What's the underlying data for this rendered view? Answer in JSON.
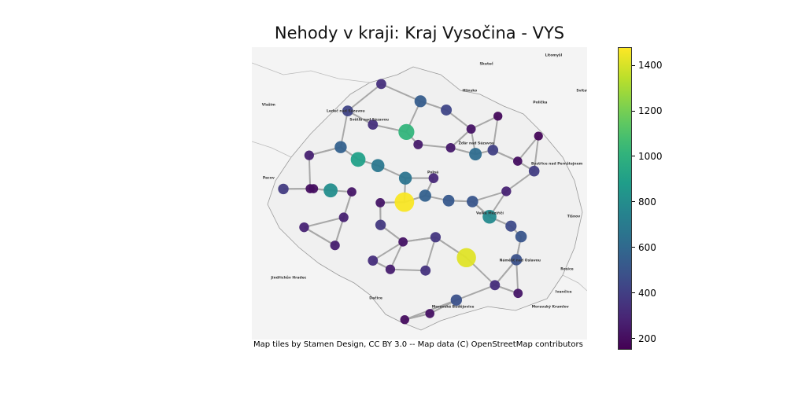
{
  "title": "Nehody v kraji: Kraj Vysočina - VYS",
  "attribution": "Map tiles by Stamen Design, CC BY 3.0 -- Map data (C) OpenStreetMap contributors",
  "colormap": "viridis",
  "colorbar": {
    "min": 150,
    "max": 1480,
    "ticks": [
      200,
      400,
      600,
      800,
      1000,
      1200,
      1400
    ]
  },
  "map_labels": [
    {
      "name": "Skuteč",
      "u": 0.7,
      "v": 0.06
    },
    {
      "name": "Litomyšl",
      "u": 0.9,
      "v": 0.03
    },
    {
      "name": "Hlinsko",
      "u": 0.65,
      "v": 0.15
    },
    {
      "name": "Polička",
      "u": 0.86,
      "v": 0.19
    },
    {
      "name": "Svitavy",
      "u": 0.99,
      "v": 0.15
    },
    {
      "name": "Vlašim",
      "u": 0.05,
      "v": 0.2
    },
    {
      "name": "Ledeč nad Sázavou",
      "u": 0.28,
      "v": 0.22
    },
    {
      "name": "Světlá nad Sázavou",
      "u": 0.35,
      "v": 0.25
    },
    {
      "name": "Žďár nad Sázavou",
      "u": 0.67,
      "v": 0.33
    },
    {
      "name": "Bystřice nad Pernštejnem",
      "u": 0.91,
      "v": 0.4
    },
    {
      "name": "Pacov",
      "u": 0.05,
      "v": 0.45
    },
    {
      "name": "Polná",
      "u": 0.54,
      "v": 0.43
    },
    {
      "name": "Velké Meziříčí",
      "u": 0.71,
      "v": 0.57
    },
    {
      "name": "Tišnov",
      "u": 0.96,
      "v": 0.58
    },
    {
      "name": "Náměšť nad Oslavou",
      "u": 0.8,
      "v": 0.73
    },
    {
      "name": "Rosice",
      "u": 0.94,
      "v": 0.76
    },
    {
      "name": "Jindřichův Hradec",
      "u": 0.11,
      "v": 0.79
    },
    {
      "name": "Ivančice",
      "u": 0.93,
      "v": 0.84
    },
    {
      "name": "Dačice",
      "u": 0.37,
      "v": 0.86
    },
    {
      "name": "Moravské Budějovice",
      "u": 0.6,
      "v": 0.89
    },
    {
      "name": "Moravský Krumlov",
      "u": 0.89,
      "v": 0.89
    }
  ],
  "accident_points": [
    {
      "u": 0.461,
      "v": 0.29,
      "count": 1020
    },
    {
      "u": 0.455,
      "v": 0.53,
      "count": 1470
    },
    {
      "u": 0.64,
      "v": 0.72,
      "count": 1420
    },
    {
      "u": 0.317,
      "v": 0.384,
      "count": 900
    },
    {
      "u": 0.235,
      "v": 0.49,
      "count": 800
    },
    {
      "u": 0.709,
      "v": 0.58,
      "count": 780
    },
    {
      "u": 0.376,
      "v": 0.405,
      "count": 680
    },
    {
      "u": 0.458,
      "v": 0.448,
      "count": 660
    },
    {
      "u": 0.667,
      "v": 0.366,
      "count": 620
    },
    {
      "u": 0.265,
      "v": 0.342,
      "count": 560
    },
    {
      "u": 0.517,
      "v": 0.508,
      "count": 560
    },
    {
      "u": 0.503,
      "v": 0.185,
      "count": 540
    },
    {
      "u": 0.587,
      "v": 0.525,
      "count": 520
    },
    {
      "u": 0.658,
      "v": 0.528,
      "count": 500
    },
    {
      "u": 0.803,
      "v": 0.648,
      "count": 500
    },
    {
      "u": 0.789,
      "v": 0.727,
      "count": 480
    },
    {
      "u": 0.61,
      "v": 0.865,
      "count": 480
    },
    {
      "u": 0.773,
      "v": 0.612,
      "count": 450
    },
    {
      "u": 0.58,
      "v": 0.215,
      "count": 430
    },
    {
      "u": 0.286,
      "v": 0.218,
      "count": 420
    },
    {
      "u": 0.719,
      "v": 0.352,
      "count": 400
    },
    {
      "u": 0.842,
      "v": 0.424,
      "count": 390
    },
    {
      "u": 0.094,
      "v": 0.485,
      "count": 380
    },
    {
      "u": 0.384,
      "v": 0.608,
      "count": 370
    },
    {
      "u": 0.548,
      "v": 0.65,
      "count": 360
    },
    {
      "u": 0.518,
      "v": 0.764,
      "count": 340
    },
    {
      "u": 0.361,
      "v": 0.265,
      "count": 330
    },
    {
      "u": 0.386,
      "v": 0.126,
      "count": 330
    },
    {
      "u": 0.725,
      "v": 0.814,
      "count": 320
    },
    {
      "u": 0.361,
      "v": 0.73,
      "count": 320
    },
    {
      "u": 0.542,
      "v": 0.448,
      "count": 300
    },
    {
      "u": 0.156,
      "v": 0.616,
      "count": 280
    },
    {
      "u": 0.759,
      "v": 0.493,
      "count": 280
    },
    {
      "u": 0.171,
      "v": 0.37,
      "count": 270
    },
    {
      "u": 0.274,
      "v": 0.582,
      "count": 270
    },
    {
      "u": 0.413,
      "v": 0.76,
      "count": 260
    },
    {
      "u": 0.248,
      "v": 0.678,
      "count": 260
    },
    {
      "u": 0.496,
      "v": 0.333,
      "count": 250
    },
    {
      "u": 0.593,
      "v": 0.344,
      "count": 240
    },
    {
      "u": 0.794,
      "v": 0.842,
      "count": 230
    },
    {
      "u": 0.298,
      "v": 0.495,
      "count": 230
    },
    {
      "u": 0.383,
      "v": 0.532,
      "count": 230
    },
    {
      "u": 0.451,
      "v": 0.666,
      "count": 220
    },
    {
      "u": 0.654,
      "v": 0.28,
      "count": 220
    },
    {
      "u": 0.531,
      "v": 0.911,
      "count": 210
    },
    {
      "u": 0.174,
      "v": 0.484,
      "count": 200
    },
    {
      "u": 0.184,
      "v": 0.484,
      "count": 200
    },
    {
      "u": 0.793,
      "v": 0.39,
      "count": 200
    },
    {
      "u": 0.456,
      "v": 0.932,
      "count": 190
    },
    {
      "u": 0.734,
      "v": 0.236,
      "count": 180
    },
    {
      "u": 0.855,
      "v": 0.304,
      "count": 170
    }
  ]
}
